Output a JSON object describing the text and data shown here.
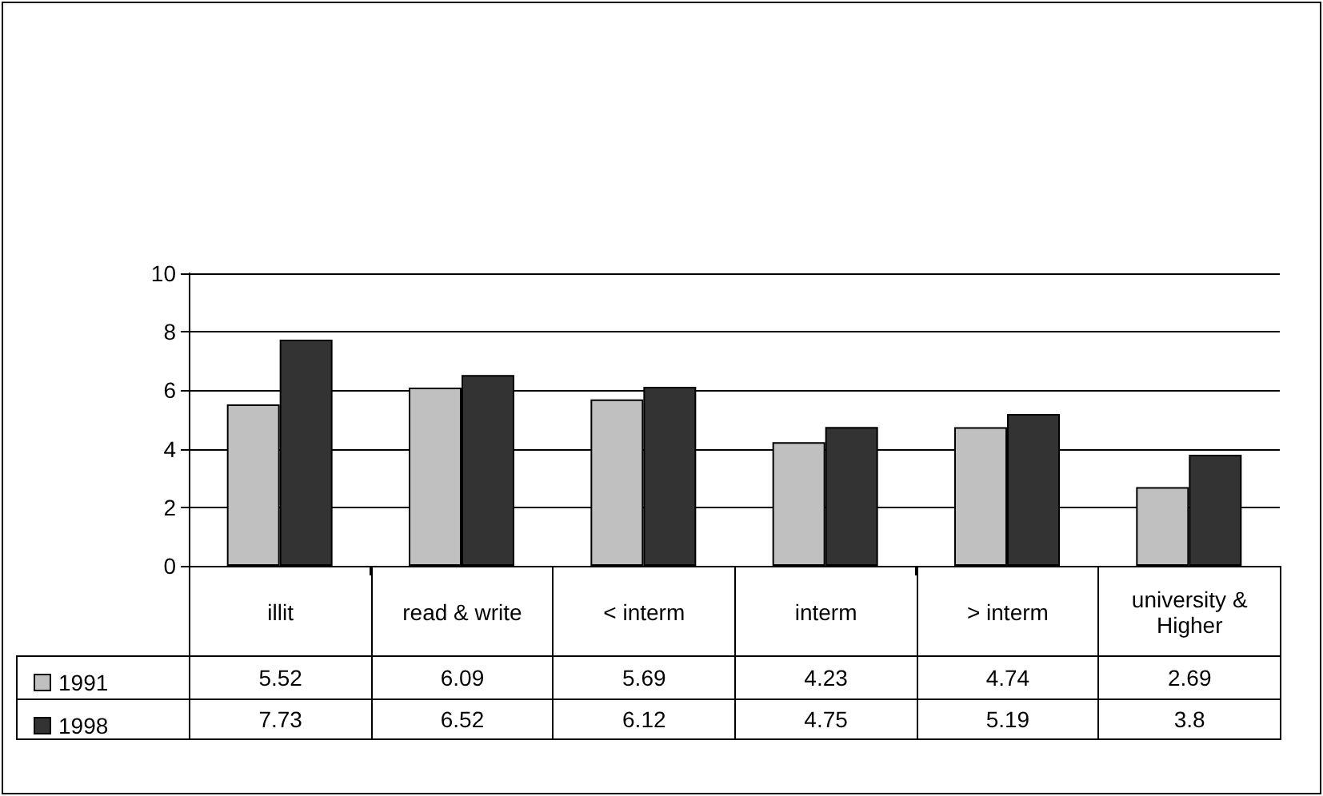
{
  "chart_data": {
    "type": "bar",
    "categories": [
      "illit",
      "read & write",
      "< interm",
      "interm",
      "> interm",
      "university & Higher"
    ],
    "series": [
      {
        "name": "1991",
        "color": "#c0c0c0",
        "values": [
          5.52,
          6.09,
          5.69,
          4.23,
          4.74,
          2.69
        ]
      },
      {
        "name": "1998",
        "color": "#333333",
        "values": [
          7.73,
          6.52,
          6.12,
          4.75,
          5.19,
          3.8
        ]
      }
    ],
    "ylim": [
      0,
      10
    ],
    "yticks": [
      0,
      2,
      4,
      6,
      8,
      10
    ],
    "grid": "y",
    "legend": "bottom",
    "data_labels": true
  }
}
